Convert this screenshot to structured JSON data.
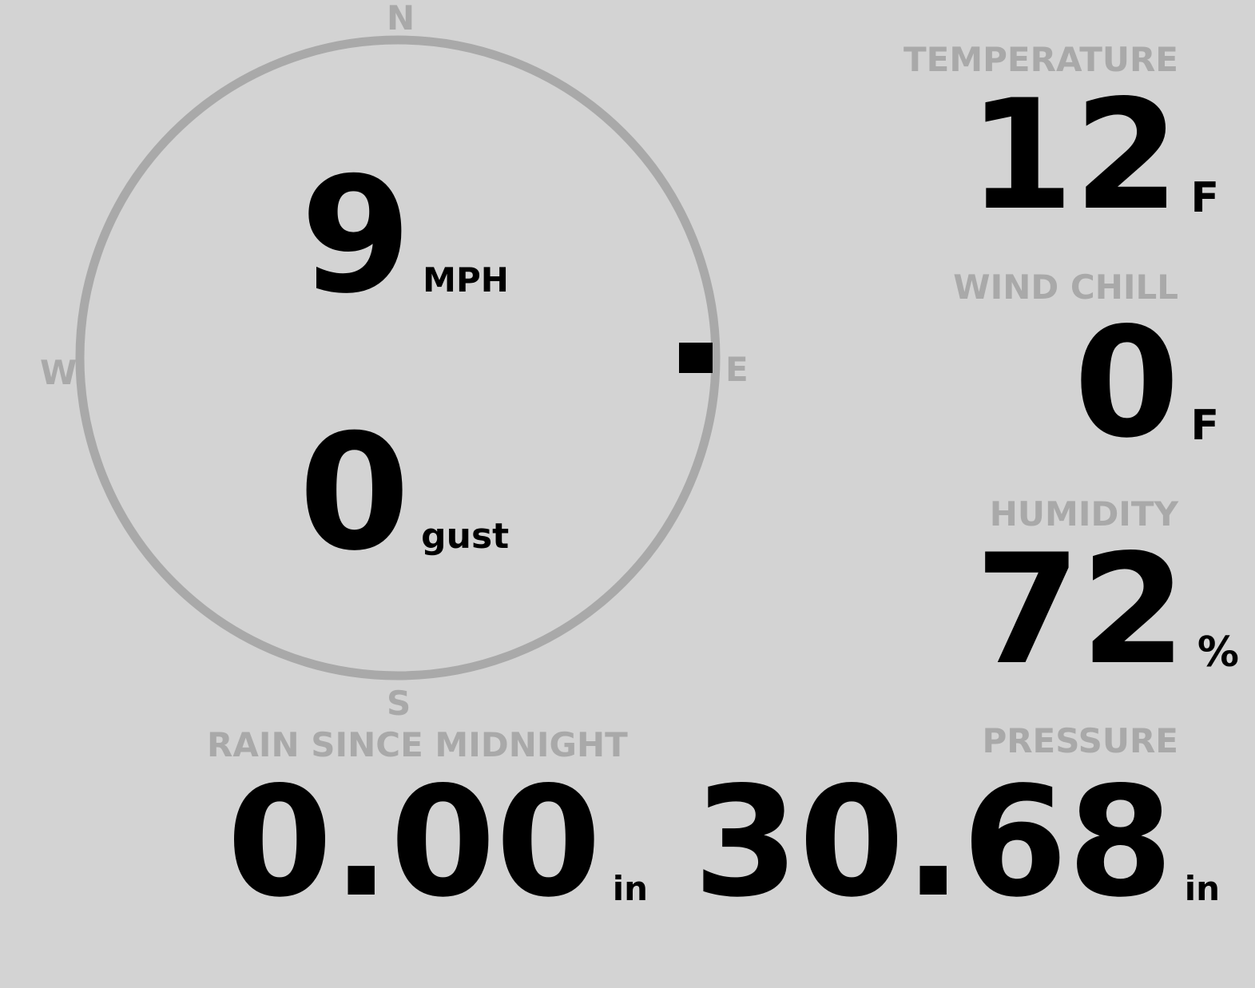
{
  "colors": {
    "background": "#d3d3d3",
    "label": "#a9a9a9",
    "value": "#000000",
    "compass_ring": "#a9a9a9"
  },
  "wind": {
    "speed": "9",
    "speed_unit": "MPH",
    "gust": "0",
    "gust_unit": "gust",
    "direction_degrees": 90,
    "cardinals": {
      "n": "N",
      "e": "E",
      "s": "S",
      "w": "W"
    }
  },
  "temperature": {
    "label": "TEMPERATURE",
    "value": "12",
    "unit": "F"
  },
  "wind_chill": {
    "label": "WIND CHILL",
    "value": "0",
    "unit": "F"
  },
  "humidity": {
    "label": "HUMIDITY",
    "value": "72",
    "unit": "%"
  },
  "rain": {
    "label": "RAIN SINCE MIDNIGHT",
    "value": "0.00",
    "unit": "in"
  },
  "pressure": {
    "label": "PRESSURE",
    "value": "30.68",
    "unit": "in"
  }
}
